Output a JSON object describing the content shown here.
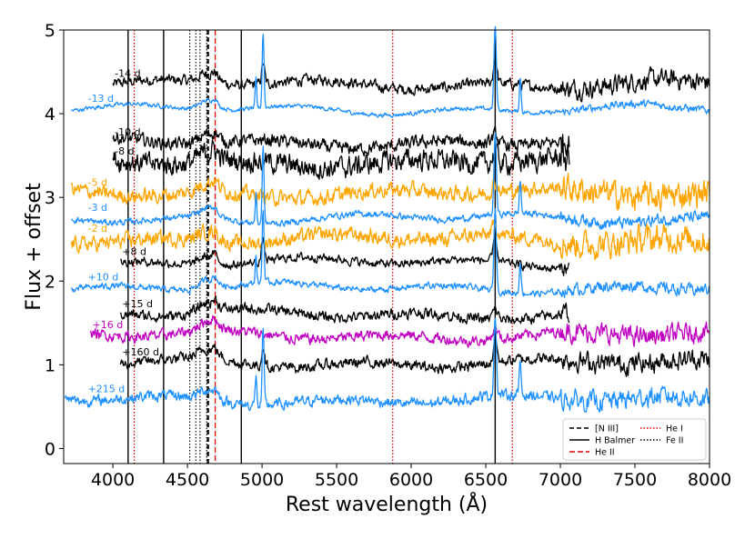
{
  "chart_data": {
    "type": "line",
    "title": "",
    "xlabel": "Rest wavelength (Å)",
    "ylabel": "Flux + offset",
    "xlim": [
      3670,
      8000
    ],
    "ylim": [
      -0.18,
      5.0
    ],
    "xticks": [
      4000,
      4500,
      5000,
      5500,
      6000,
      6500,
      7000,
      7500,
      8000
    ],
    "yticks": [
      0,
      1,
      2,
      3,
      4,
      5
    ],
    "grid": false,
    "legend_position": "bottom-right",
    "colors": {
      "black": "#000000",
      "blue": "#1e90ff",
      "orange": "#ffa500",
      "magenta": "#c000c0",
      "red": "#e00000"
    },
    "legend": [
      {
        "label": "[N III]",
        "color": "#000000",
        "style": "dashed"
      },
      {
        "label": "H Balmer",
        "color": "#000000",
        "style": "solid"
      },
      {
        "label": "He II",
        "color": "#e00000",
        "style": "dashed"
      },
      {
        "label": "He I",
        "color": "#e00000",
        "style": "dotted"
      },
      {
        "label": "Fe II",
        "color": "#000000",
        "style": "dotted"
      }
    ],
    "reference_lines": [
      {
        "group": "H Balmer",
        "x": [
          4102,
          4340,
          4861,
          6563
        ]
      },
      {
        "group": "[N III]",
        "x": [
          4634,
          4641
        ]
      },
      {
        "group": "He II",
        "x": [
          4686
        ]
      },
      {
        "group": "He I",
        "x": [
          4143,
          5876,
          6678
        ]
      },
      {
        "group": "Fe II",
        "x": [
          4515,
          4556,
          4584,
          4629
        ]
      }
    ],
    "series": [
      {
        "name": "-14 d",
        "color": "#000000",
        "offset": 4.35,
        "x_range": [
          4000,
          8000
        ],
        "noise": 0.05
      },
      {
        "name": "-13 d",
        "color": "#1e90ff",
        "offset": 4.05,
        "x_range": [
          3720,
          8000
        ],
        "noise": 0.02
      },
      {
        "name": "-10 d",
        "color": "#000000",
        "offset": 3.65,
        "x_range": [
          4000,
          7060
        ],
        "noise": 0.06
      },
      {
        "name": "-8 d",
        "color": "#000000",
        "offset": 3.42,
        "x_range": [
          4000,
          7060
        ],
        "noise": 0.1
      },
      {
        "name": "-5 d",
        "color": "#ffa500",
        "offset": 3.05,
        "x_range": [
          3720,
          8000
        ],
        "noise": 0.07
      },
      {
        "name": "-3 d",
        "color": "#1e90ff",
        "offset": 2.75,
        "x_range": [
          3720,
          8000
        ],
        "noise": 0.03
      },
      {
        "name": "-2 d",
        "color": "#ffa500",
        "offset": 2.5,
        "x_range": [
          3720,
          8000
        ],
        "noise": 0.07
      },
      {
        "name": "+8 d",
        "color": "#000000",
        "offset": 2.22,
        "x_range": [
          4050,
          7060
        ],
        "noise": 0.04
      },
      {
        "name": "+10 d",
        "color": "#1e90ff",
        "offset": 1.92,
        "x_range": [
          3720,
          8000
        ],
        "noise": 0.03
      },
      {
        "name": "+15 d",
        "color": "#000000",
        "offset": 1.6,
        "x_range": [
          4050,
          7060
        ],
        "noise": 0.05
      },
      {
        "name": "+16 d",
        "color": "#c000c0",
        "offset": 1.35,
        "x_range": [
          3850,
          8000
        ],
        "noise": 0.05
      },
      {
        "name": "+160 d",
        "color": "#000000",
        "offset": 1.02,
        "x_range": [
          4050,
          8000
        ],
        "noise": 0.05
      },
      {
        "name": "+215 d",
        "color": "#1e90ff",
        "offset": 0.58,
        "x_range": [
          3680,
          8000
        ],
        "noise": 0.05
      }
    ]
  }
}
